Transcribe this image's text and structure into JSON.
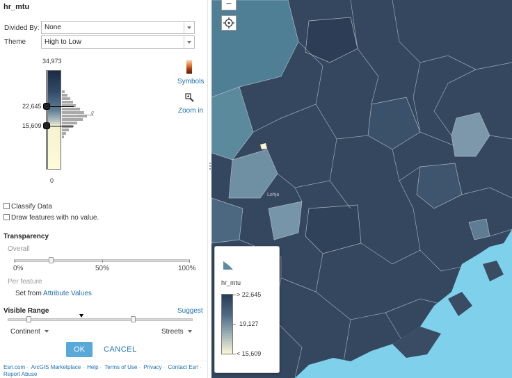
{
  "layer_name": "hr_mtu",
  "divided_by": {
    "label": "Divided By:",
    "value": "None"
  },
  "theme": {
    "label": "Theme",
    "value": "High to Low"
  },
  "ramp": {
    "max": "34,973",
    "upper_handle": "22,645",
    "lower_handle": "15,609",
    "min": "0",
    "mean_symbol": "x̄"
  },
  "symbols_label": "Symbols",
  "zoom_in_label": "Zoom in",
  "classify_data": {
    "label": "Classify Data",
    "checked": false
  },
  "draw_no_value": {
    "label": "Draw features with no value.",
    "checked": false
  },
  "transparency": {
    "title": "Transparency",
    "overall_label": "Overall",
    "ticks": [
      "0%",
      "50%",
      "100%"
    ],
    "value_percent": 20,
    "per_feature_label": "Per feature",
    "set_from_text": "Set from",
    "attribute_values_link": "Attribute Values"
  },
  "visible_range": {
    "title": "Visible Range",
    "suggest_label": "Suggest",
    "min_scale": "Continent",
    "max_scale": "Streets"
  },
  "buttons": {
    "ok": "OK",
    "cancel": "CANCEL"
  },
  "footer": {
    "links": [
      "Esri.com",
      "ArcGIS Marketplace",
      "Help",
      "Terms of Use",
      "Privacy",
      "Contact Esri",
      "Report Abuse"
    ]
  },
  "map": {
    "zoom_out": "−",
    "locate_icon": "locate-icon",
    "labels": [
      "Lohja"
    ]
  },
  "legend": {
    "layer_title": "hr_mtu",
    "high_label": "> 22,645",
    "mid_label": "19,127",
    "low_label": "< 15,609"
  },
  "colors": {
    "accent": "#58a8d8",
    "link": "#1f6fb2",
    "map_dark": "#34475f",
    "sea": "#7fd0ea"
  }
}
